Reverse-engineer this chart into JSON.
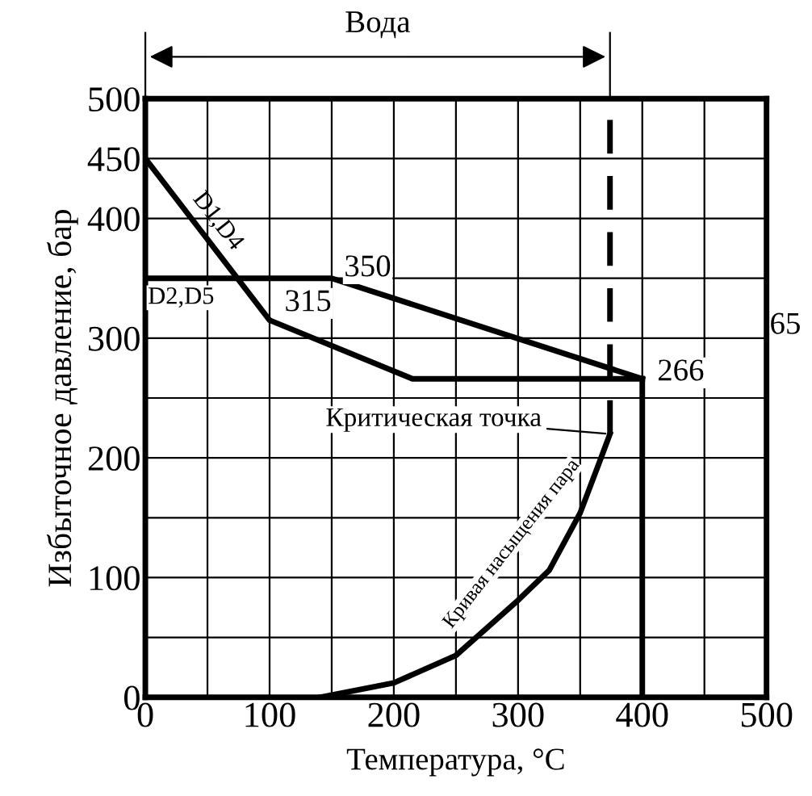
{
  "chart_data": {
    "type": "line",
    "xlabel": "Температура, °C",
    "ylabel": "Избыточное давление, бар",
    "xlim": [
      0,
      500
    ],
    "ylim": [
      0,
      500
    ],
    "xticks": [
      0,
      100,
      200,
      300,
      400,
      500
    ],
    "yticks": [
      0,
      100,
      200,
      300,
      400,
      450,
      500
    ],
    "grid": true,
    "marker": "none",
    "series": [
      {
        "name": "D1,D4",
        "color": "#000000",
        "x": [
          0,
          100,
          215,
          400
        ],
        "values": [
          450,
          315,
          266,
          266
        ]
      },
      {
        "name": "D2,D5",
        "color": "#000000",
        "x": [
          0,
          150,
          400
        ],
        "values": [
          350,
          350,
          266
        ]
      },
      {
        "color": "#000000",
        "x": [
          400,
          400
        ],
        "values": [
          266,
          0
        ]
      },
      {
        "name": "Кривая насыщения пара",
        "color": "#000000",
        "x": [
          141,
          200,
          250,
          300,
          325,
          350,
          365,
          374
        ],
        "values": [
          0,
          12,
          35,
          81,
          106,
          154,
          195,
          220
        ]
      }
    ],
    "ref_lines": [
      {
        "axis": "x",
        "value": 374,
        "line_style": "dashed",
        "color": "#000000"
      }
    ],
    "annotations": [
      {
        "text": "350",
        "x": 150,
        "y": 350
      },
      {
        "text": "315",
        "x": 100,
        "y": 315
      },
      {
        "text": "266",
        "x": 400,
        "y": 266
      },
      {
        "text": "Критическая точка",
        "x": 374,
        "y": 220
      },
      "65",
      "Вода"
    ]
  }
}
